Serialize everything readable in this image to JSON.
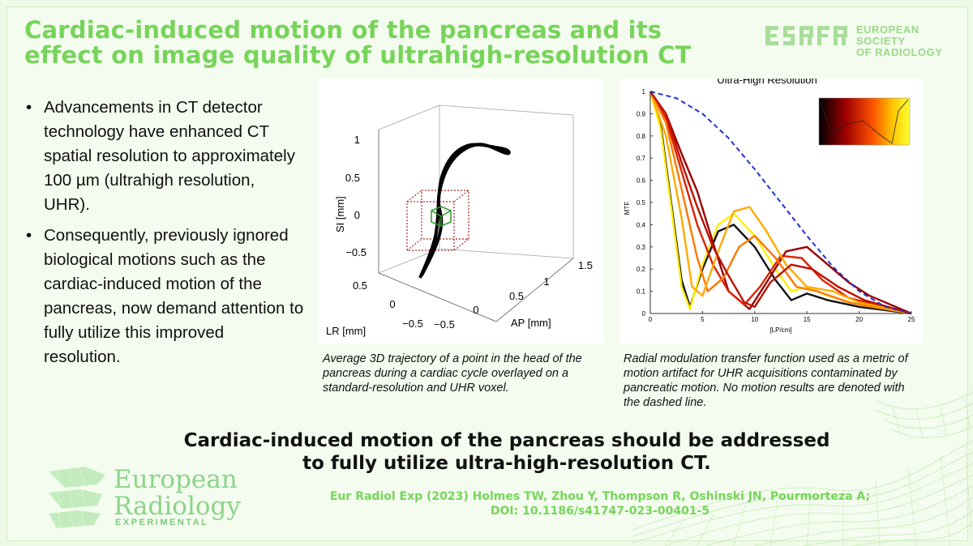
{
  "title": {
    "line1": "Cardiac-induced motion of the pancreas and its",
    "line2": "effect on image quality of ultrahigh-resolution CT"
  },
  "esr_logo": {
    "line1": "EUROPEAN SOCIETY",
    "line2": "OF RADIOLOGY",
    "icon": "esr-logo-icon"
  },
  "bullets": [
    {
      "marker": "•",
      "text": "Advancements in CT detector technology have enhanced CT spatial resolution to approximately 100 µm (ultrahigh resolution, UHR)."
    },
    {
      "marker": "•",
      "text": "Consequently, previously ignored biological motions such as the cardiac-induced motion of the pancreas, now demand attention to fully utilize this improved resolution."
    }
  ],
  "figure1": {
    "axis_si": "SI [mm]",
    "axis_lr": "LR [mm]",
    "axis_ap": "AP [mm]",
    "si_ticks": [
      "1",
      "0.5",
      "0",
      "−0.5"
    ],
    "lr_ticks": [
      "0.5",
      "0",
      "−0.5"
    ],
    "ap_ticks": [
      "−0.5",
      "0",
      "0.5",
      "1",
      "1.5"
    ],
    "caption": "Average 3D trajectory of a point in the head of the pancreas during a cardiac cycle overlayed on a standard-resolution and UHR voxel."
  },
  "figure2": {
    "caption": "Radial modulation transfer function used as a metric of motion artifact for UHR acquisitions contaminated by pancreatic motion. No motion results are denoted with the dashed line."
  },
  "chart_data": {
    "type": "line",
    "title": "Ultra-High Resolution",
    "xlabel": "[LP/cm]",
    "ylabel": "MTF",
    "xlim": [
      0,
      25
    ],
    "ylim": [
      0,
      1
    ],
    "xticks": [
      "0",
      "5",
      "10",
      "15",
      "20",
      "25"
    ],
    "yticks": [
      "0",
      "0.1",
      "0.2",
      "0.3",
      "0.4",
      "0.5",
      "0.6",
      "0.7",
      "0.8",
      "0.9",
      "1"
    ],
    "series": [
      {
        "style": "dashed",
        "color": "#2233cc",
        "x": [
          0,
          2.5,
          5,
          7.5,
          10,
          12.5,
          15,
          17.5,
          20,
          22.5,
          25
        ],
        "y": [
          1.0,
          0.97,
          0.9,
          0.79,
          0.65,
          0.5,
          0.35,
          0.21,
          0.1,
          0.03,
          0.0
        ]
      },
      {
        "color": "#111111",
        "x": [
          0,
          1,
          2,
          3,
          3.8,
          5,
          6.5,
          8,
          10,
          12,
          13.5,
          15,
          17,
          20,
          25
        ],
        "y": [
          1.0,
          0.85,
          0.5,
          0.15,
          0.03,
          0.2,
          0.37,
          0.4,
          0.3,
          0.15,
          0.06,
          0.09,
          0.06,
          0.03,
          0.0
        ]
      },
      {
        "color": "#ffee00",
        "x": [
          0,
          1,
          2,
          3,
          3.8,
          5,
          6.5,
          8,
          10,
          12,
          13.5,
          15,
          17,
          20,
          25
        ],
        "y": [
          1.0,
          0.83,
          0.48,
          0.12,
          0.02,
          0.22,
          0.4,
          0.45,
          0.35,
          0.2,
          0.1,
          0.12,
          0.08,
          0.04,
          0.0
        ]
      },
      {
        "color": "#990000",
        "x": [
          0,
          1.5,
          3,
          4.5,
          6,
          7.5,
          9.5,
          11,
          13,
          15,
          17,
          19,
          21,
          25
        ],
        "y": [
          1.0,
          0.9,
          0.72,
          0.55,
          0.32,
          0.1,
          0.02,
          0.13,
          0.28,
          0.3,
          0.22,
          0.14,
          0.08,
          0.0
        ]
      },
      {
        "color": "#dd2200",
        "x": [
          0,
          1.5,
          3,
          4.5,
          6,
          7.5,
          9,
          10.5,
          12.5,
          14.5,
          16.5,
          19,
          25
        ],
        "y": [
          1.0,
          0.88,
          0.64,
          0.4,
          0.22,
          0.1,
          0.04,
          0.12,
          0.26,
          0.25,
          0.15,
          0.07,
          0.0
        ]
      },
      {
        "color": "#ff7700",
        "x": [
          0,
          1.5,
          3,
          4.5,
          5.5,
          7,
          8.5,
          10,
          12,
          14,
          16,
          19,
          25
        ],
        "y": [
          1.0,
          0.86,
          0.56,
          0.25,
          0.1,
          0.16,
          0.3,
          0.35,
          0.25,
          0.12,
          0.1,
          0.05,
          0.0
        ]
      },
      {
        "color": "#ffaa00",
        "x": [
          0,
          1.5,
          3,
          4,
          5,
          6.5,
          8,
          9.5,
          11,
          13,
          15,
          17.5,
          20,
          25
        ],
        "y": [
          1.0,
          0.8,
          0.43,
          0.12,
          0.08,
          0.28,
          0.46,
          0.48,
          0.38,
          0.22,
          0.12,
          0.1,
          0.05,
          0.0
        ]
      },
      {
        "color": "#bb1100",
        "x": [
          0,
          1.5,
          3,
          4.5,
          6,
          7.5,
          9,
          10,
          11.5,
          13.5,
          15.5,
          18,
          20.5,
          25
        ],
        "y": [
          1.0,
          0.9,
          0.68,
          0.48,
          0.3,
          0.17,
          0.05,
          0.03,
          0.14,
          0.22,
          0.2,
          0.12,
          0.06,
          0.0
        ]
      }
    ]
  }
}
